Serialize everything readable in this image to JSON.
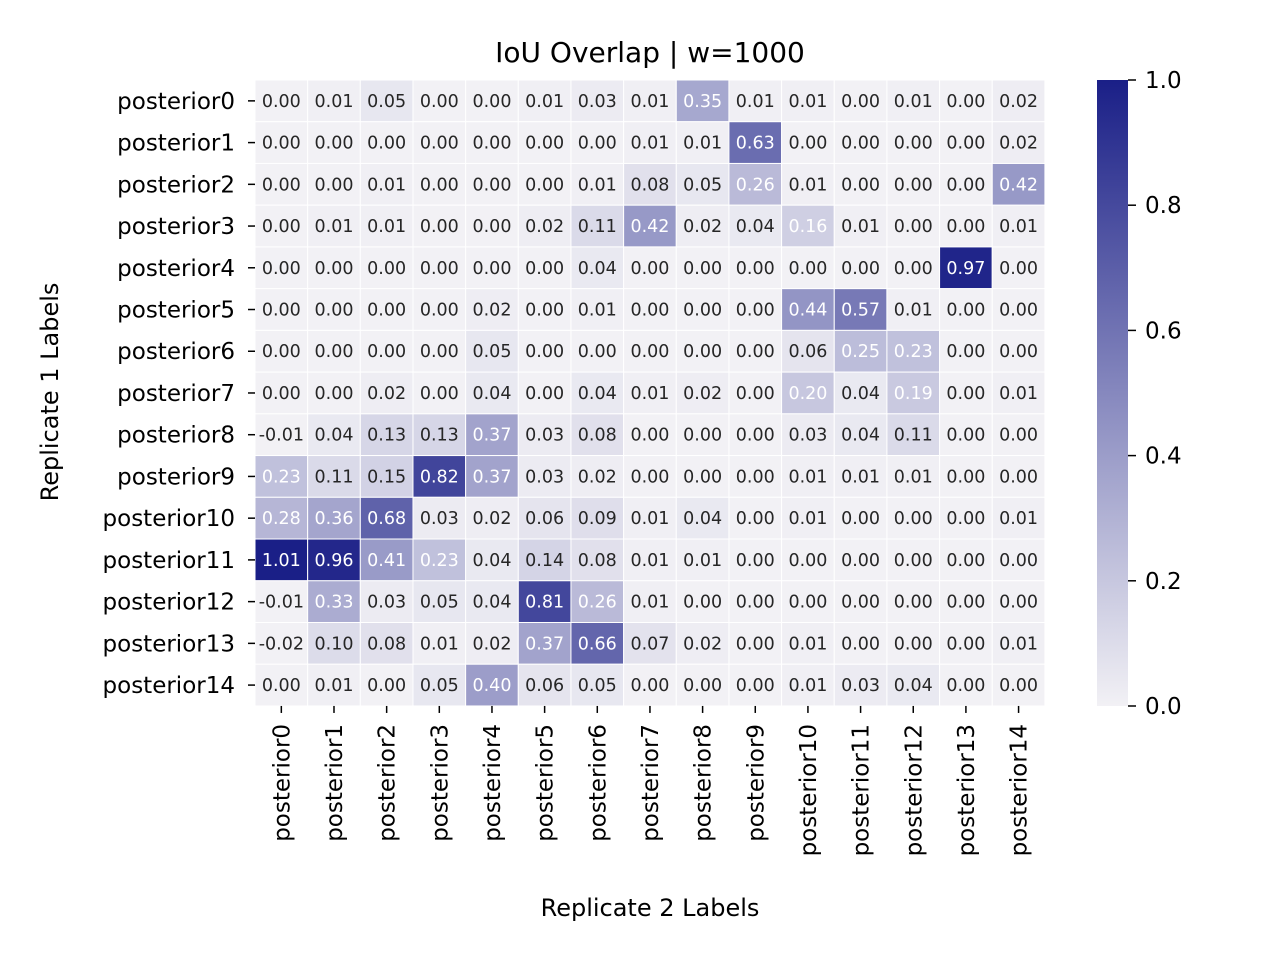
{
  "chart_data": {
    "type": "heatmap",
    "title": "IoU Overlap | w=1000",
    "xlabel": "Replicate 2 Labels",
    "ylabel": "Replicate 1 Labels",
    "x_categories": [
      "posterior0",
      "posterior1",
      "posterior2",
      "posterior3",
      "posterior4",
      "posterior5",
      "posterior6",
      "posterior7",
      "posterior8",
      "posterior9",
      "posterior10",
      "posterior11",
      "posterior12",
      "posterior13",
      "posterior14"
    ],
    "y_categories": [
      "posterior0",
      "posterior1",
      "posterior2",
      "posterior3",
      "posterior4",
      "posterior5",
      "posterior6",
      "posterior7",
      "posterior8",
      "posterior9",
      "posterior10",
      "posterior11",
      "posterior12",
      "posterior13",
      "posterior14"
    ],
    "values": [
      [
        -0.0,
        0.01,
        0.05,
        0.0,
        0.0,
        0.01,
        0.03,
        0.01,
        0.35,
        0.01,
        0.01,
        0.0,
        0.01,
        0.0,
        0.02
      ],
      [
        -0.0,
        0.0,
        0.0,
        0.0,
        0.0,
        0.0,
        0.0,
        0.01,
        0.01,
        0.63,
        0.0,
        0.0,
        0.0,
        0.0,
        0.02
      ],
      [
        -0.0,
        0.0,
        0.01,
        0.0,
        0.0,
        0.0,
        0.01,
        0.08,
        0.05,
        0.26,
        0.01,
        0.0,
        0.0,
        0.0,
        0.42
      ],
      [
        -0.0,
        0.01,
        0.01,
        0.0,
        0.0,
        0.02,
        0.11,
        0.42,
        0.02,
        0.04,
        0.16,
        0.01,
        0.0,
        0.0,
        0.01
      ],
      [
        -0.0,
        0.0,
        0.0,
        0.0,
        0.0,
        0.0,
        0.04,
        0.0,
        0.0,
        0.0,
        0.0,
        0.0,
        0.0,
        0.97,
        0.0
      ],
      [
        -0.0,
        0.0,
        0.0,
        0.0,
        0.02,
        0.0,
        0.01,
        0.0,
        0.0,
        0.0,
        0.44,
        0.57,
        0.01,
        0.0,
        0.0
      ],
      [
        -0.0,
        0.0,
        0.0,
        0.0,
        0.05,
        0.0,
        0.0,
        0.0,
        0.0,
        0.0,
        0.06,
        0.25,
        0.23,
        0.0,
        0.0
      ],
      [
        -0.0,
        0.0,
        0.02,
        0.0,
        0.04,
        0.0,
        0.04,
        0.01,
        0.02,
        0.0,
        0.2,
        0.04,
        0.19,
        0.0,
        0.01
      ],
      [
        -0.01,
        0.04,
        0.13,
        0.13,
        0.37,
        0.03,
        0.08,
        0.0,
        0.0,
        0.0,
        0.03,
        0.04,
        0.11,
        0.0,
        0.0
      ],
      [
        0.23,
        0.11,
        0.15,
        0.82,
        0.37,
        0.03,
        0.02,
        0.0,
        0.0,
        0.0,
        0.01,
        0.01,
        0.01,
        0.0,
        0.0
      ],
      [
        0.28,
        0.36,
        0.68,
        0.03,
        0.02,
        0.06,
        0.09,
        0.01,
        0.04,
        0.0,
        0.01,
        0.0,
        0.0,
        0.0,
        0.01
      ],
      [
        1.01,
        0.96,
        0.41,
        0.23,
        0.04,
        0.14,
        0.08,
        0.01,
        0.01,
        0.0,
        0.0,
        0.0,
        0.0,
        0.0,
        0.0
      ],
      [
        -0.01,
        0.33,
        0.03,
        0.05,
        0.04,
        0.81,
        0.26,
        0.01,
        0.0,
        0.0,
        0.0,
        0.0,
        0.0,
        0.0,
        0.0
      ],
      [
        -0.02,
        0.1,
        0.08,
        0.01,
        0.02,
        0.37,
        0.66,
        0.07,
        0.02,
        0.0,
        0.01,
        0.0,
        0.0,
        0.0,
        0.01
      ],
      [
        -0.0,
        0.01,
        0.0,
        0.05,
        0.4,
        0.06,
        0.05,
        0.0,
        0.0,
        0.0,
        0.01,
        0.03,
        0.04,
        0.0,
        0.0
      ]
    ],
    "vmin": 0.0,
    "vmax": 1.0,
    "colorbar_ticks": [
      "0.0",
      "0.2",
      "0.4",
      "0.6",
      "0.8",
      "1.0"
    ],
    "colormap": {
      "low": "#f2f1f5",
      "high": "#1a1f87"
    },
    "annotation_colors": {
      "dark_text": "#262626",
      "light_text": "#ffffff"
    }
  }
}
